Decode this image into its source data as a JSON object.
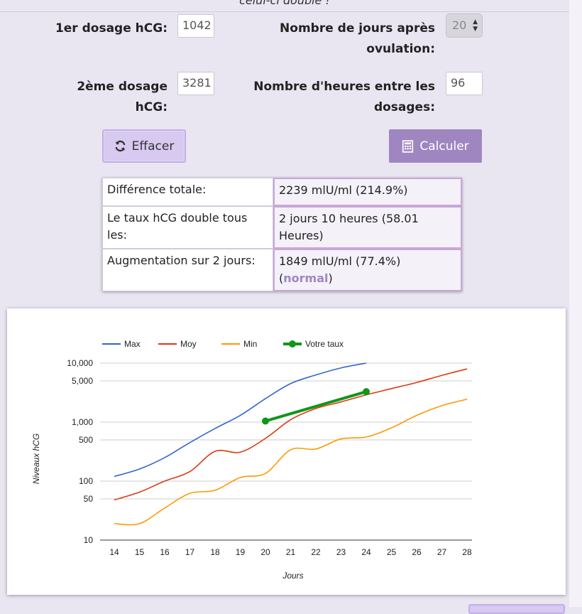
{
  "header": {
    "cut_text": "celui-ci double !"
  },
  "form": {
    "dose1_label": "1er dosage hCG:",
    "dose1_value": "1042",
    "dose2_label_line1": "2ème dosage",
    "dose2_label_line2": "hCG:",
    "dose2_value": "3281",
    "days_label_line1": "Nombre de jours après",
    "days_label_line2": "ovulation:",
    "days_value": "20",
    "hours_label_line1": "Nombre d'heures entre les",
    "hours_label_line2": "dosages:",
    "hours_value": "96"
  },
  "buttons": {
    "clear": "Effacer",
    "calculate": "Calculer"
  },
  "results": [
    {
      "label": "Différence totale:",
      "value": "2239 mlU/ml (214.9%)"
    },
    {
      "label": "Le taux hCG double tous les:",
      "value": "2 jours 10 heures (58.01 Heures)"
    },
    {
      "label": "Augmentation sur 2 jours:",
      "value_prefix": "1849 mlU/ml (77.4%) (",
      "value_status": "normal",
      "value_suffix": ")"
    }
  ],
  "colors": {
    "max": "#3366cc",
    "moy": "#dc3912",
    "min": "#ff9900",
    "votre": "#109618",
    "accent": "#a086c0"
  },
  "chart_data": {
    "type": "line",
    "xlabel": "Jours",
    "ylabel": "Niveaux hCG",
    "yscale": "log",
    "x": [
      14,
      15,
      16,
      17,
      18,
      19,
      20,
      21,
      22,
      23,
      24,
      25,
      26,
      27,
      28
    ],
    "ylim": [
      10,
      10000
    ],
    "y_ticks": [
      "10",
      "50",
      "100",
      "500",
      "1,000",
      "5,000",
      "10,000"
    ],
    "legend_position": "top",
    "grid": true,
    "series": [
      {
        "name": "Max",
        "x": [
          14,
          15,
          16,
          17,
          18,
          19,
          20,
          21,
          22,
          23,
          24
        ],
        "values": [
          120,
          160,
          250,
          450,
          780,
          1300,
          2500,
          4500,
          6300,
          8300,
          10000
        ]
      },
      {
        "name": "Moy",
        "x": [
          14,
          15,
          16,
          17,
          18,
          19,
          20,
          21,
          22,
          23,
          24,
          25,
          26,
          27,
          28
        ],
        "values": [
          48,
          65,
          100,
          145,
          320,
          310,
          530,
          1100,
          1700,
          2200,
          2900,
          3700,
          4700,
          6200,
          8000
        ]
      },
      {
        "name": "Min",
        "x": [
          14,
          15,
          16,
          17,
          18,
          19,
          20,
          21,
          22,
          23,
          24,
          25,
          26,
          27,
          28
        ],
        "values": [
          19,
          19,
          35,
          62,
          70,
          115,
          135,
          340,
          350,
          520,
          560,
          800,
          1300,
          1900,
          2450
        ]
      },
      {
        "name": "Votre taux",
        "x": [
          20,
          24
        ],
        "values": [
          1042,
          3281
        ]
      }
    ]
  }
}
